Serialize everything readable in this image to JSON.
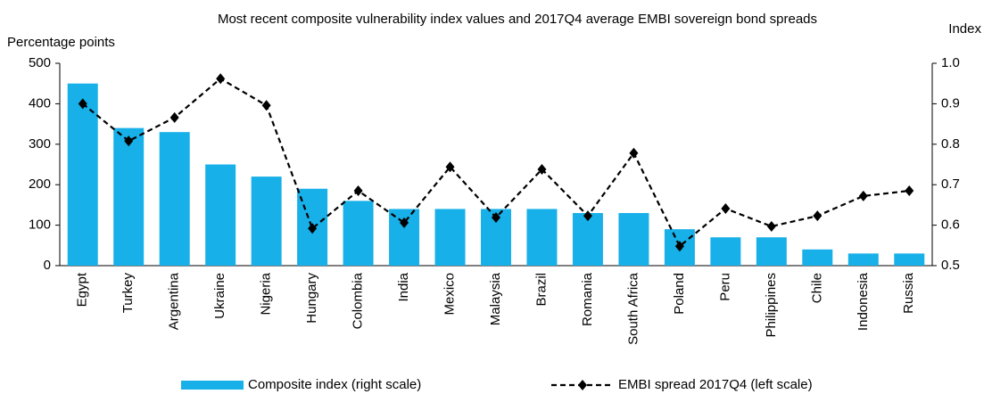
{
  "chart_data": {
    "type": "bar-line",
    "subtitle": "Most recent composite vulnerability index values and 2017Q4 average EMBI sovereign bond spreads",
    "y_label": "Percentage points",
    "y2_label": "Index",
    "categories": [
      "Egypt",
      "Turkey",
      "Argentina",
      "Ukraine",
      "Nigeria",
      "Hungary",
      "Colombia",
      "India",
      "Mexico",
      "Malaysia",
      "Brazil",
      "Romania",
      "South Africa",
      "Poland",
      "Peru",
      "Philippines",
      "Chile",
      "Indonesia",
      "Russia"
    ],
    "series": [
      {
        "name": "Composite index (right scale)",
        "color": "#17b0e8",
        "axis": "y2",
        "kind": "bar",
        "values": [
          0.95,
          0.84,
          0.83,
          0.75,
          0.72,
          0.69,
          0.66,
          0.64,
          0.64,
          0.64,
          0.64,
          0.63,
          0.63,
          0.59,
          0.57,
          0.57,
          0.54,
          0.53,
          0.53
        ]
      },
      {
        "name": "EMBI spread 2017Q4 (left scale)",
        "color": "#000000",
        "kind": "line",
        "values": [
          400,
          308,
          366,
          462,
          396,
          92,
          185,
          106,
          244,
          119,
          238,
          123,
          278,
          48,
          141,
          97,
          123,
          172,
          185
        ]
      }
    ],
    "ylim": [
      0,
      500
    ],
    "yticks": [
      0,
      100,
      200,
      300,
      400,
      500
    ],
    "y2lim": [
      0.5,
      1.0
    ],
    "y2ticks": [
      0.5,
      0.6,
      0.7,
      0.8,
      0.9,
      {
        "value": 1.0,
        "label": "1.0"
      }
    ]
  }
}
